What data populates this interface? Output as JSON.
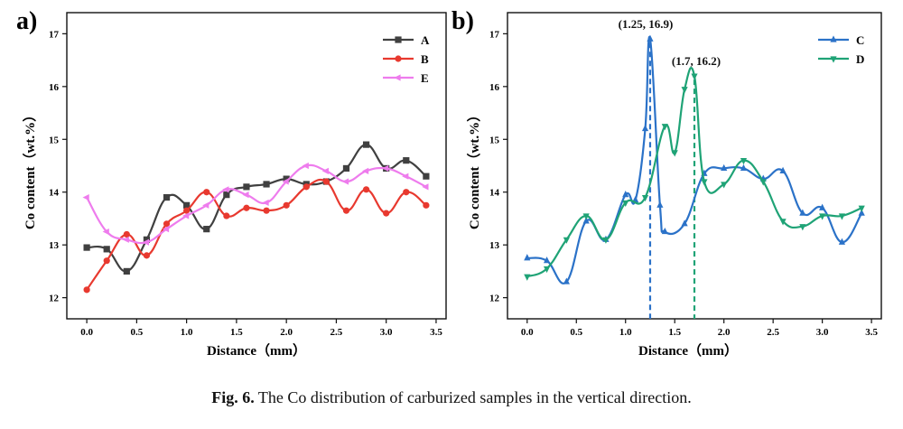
{
  "figure": {
    "caption_label": "Fig. 6.",
    "caption_text": "The Co distribution of carburized samples in the vertical direction."
  },
  "chart_data": [
    {
      "panel": "a)",
      "type": "line",
      "xlabel": "Distance（mm）",
      "ylabel": "Co content（wt.%）",
      "xlim": [
        -0.2,
        3.6
      ],
      "ylim": [
        11.6,
        17.4
      ],
      "xticks": [
        0.0,
        0.5,
        1.0,
        1.5,
        2.0,
        2.5,
        3.0,
        3.5
      ],
      "xtick_labels": [
        "0.0",
        "0.5",
        "1.0",
        "1.5",
        "2.0",
        "2.5",
        "3.0",
        "3.5"
      ],
      "yticks": [
        12,
        13,
        14,
        15,
        16,
        17
      ],
      "ytick_labels": [
        "12",
        "13",
        "14",
        "15",
        "16",
        "17"
      ],
      "legend_position": "top-right",
      "x": [
        0.0,
        0.2,
        0.4,
        0.6,
        0.8,
        1.0,
        1.2,
        1.4,
        1.6,
        1.8,
        2.0,
        2.2,
        2.4,
        2.6,
        2.8,
        3.0,
        3.2,
        3.4
      ],
      "series": [
        {
          "name": "A",
          "color": "#404040",
          "marker": "square",
          "values": [
            12.95,
            12.92,
            12.5,
            13.1,
            13.9,
            13.75,
            13.3,
            13.95,
            14.1,
            14.15,
            14.25,
            14.15,
            14.2,
            14.45,
            14.9,
            14.45,
            14.6,
            14.3
          ]
        },
        {
          "name": "B",
          "color": "#e8392f",
          "marker": "circle",
          "values": [
            12.15,
            12.7,
            13.2,
            12.8,
            13.4,
            13.65,
            14.0,
            13.55,
            13.7,
            13.65,
            13.75,
            14.1,
            14.2,
            13.65,
            14.05,
            13.6,
            14.0,
            13.75
          ]
        },
        {
          "name": "E",
          "color": "#ee7ced",
          "marker": "triangle-left",
          "values": [
            13.9,
            13.25,
            13.1,
            13.05,
            13.3,
            13.55,
            13.75,
            14.05,
            13.95,
            13.8,
            14.2,
            14.5,
            14.4,
            14.2,
            14.4,
            14.45,
            14.3,
            14.1
          ]
        }
      ]
    },
    {
      "panel": "b)",
      "type": "line",
      "xlabel": "Distance（mm）",
      "ylabel": "Co content（wt.%）",
      "xlim": [
        -0.2,
        3.6
      ],
      "ylim": [
        11.6,
        17.4
      ],
      "xticks": [
        0.0,
        0.5,
        1.0,
        1.5,
        2.0,
        2.5,
        3.0,
        3.5
      ],
      "xtick_labels": [
        "0.0",
        "0.5",
        "1.0",
        "1.5",
        "2.0",
        "2.5",
        "3.0",
        "3.5"
      ],
      "yticks": [
        12,
        13,
        14,
        15,
        16,
        17
      ],
      "ytick_labels": [
        "12",
        "13",
        "14",
        "15",
        "16",
        "17"
      ],
      "legend_position": "top-right",
      "series": [
        {
          "name": "C",
          "color": "#2b72c8",
          "marker": "triangle-up",
          "x": [
            0.0,
            0.2,
            0.4,
            0.6,
            0.8,
            1.0,
            1.1,
            1.2,
            1.25,
            1.35,
            1.4,
            1.6,
            1.8,
            2.0,
            2.2,
            2.4,
            2.6,
            2.8,
            3.0,
            3.2,
            3.4
          ],
          "values": [
            12.75,
            12.7,
            12.3,
            13.45,
            13.1,
            13.95,
            13.85,
            15.2,
            16.9,
            13.75,
            13.25,
            13.4,
            14.35,
            14.45,
            14.45,
            14.25,
            14.4,
            13.6,
            13.7,
            13.05,
            13.6
          ]
        },
        {
          "name": "D",
          "color": "#1fa376",
          "marker": "triangle-down",
          "x": [
            0.0,
            0.2,
            0.4,
            0.6,
            0.8,
            1.0,
            1.2,
            1.4,
            1.5,
            1.6,
            1.7,
            1.8,
            2.0,
            2.2,
            2.4,
            2.6,
            2.8,
            3.0,
            3.2,
            3.4
          ],
          "values": [
            12.4,
            12.55,
            13.1,
            13.55,
            13.1,
            13.8,
            13.9,
            15.25,
            14.75,
            15.95,
            16.2,
            14.2,
            14.15,
            14.6,
            14.2,
            13.45,
            13.35,
            13.55,
            13.55,
            13.7
          ]
        }
      ],
      "annotations": [
        {
          "text": "(1.25, 16.9)",
          "x": 1.25,
          "y": 16.9,
          "color": "#2b72c8"
        },
        {
          "text": "(1.7, 16.2)",
          "x": 1.7,
          "y": 16.2,
          "color": "#1fa376"
        }
      ]
    }
  ]
}
